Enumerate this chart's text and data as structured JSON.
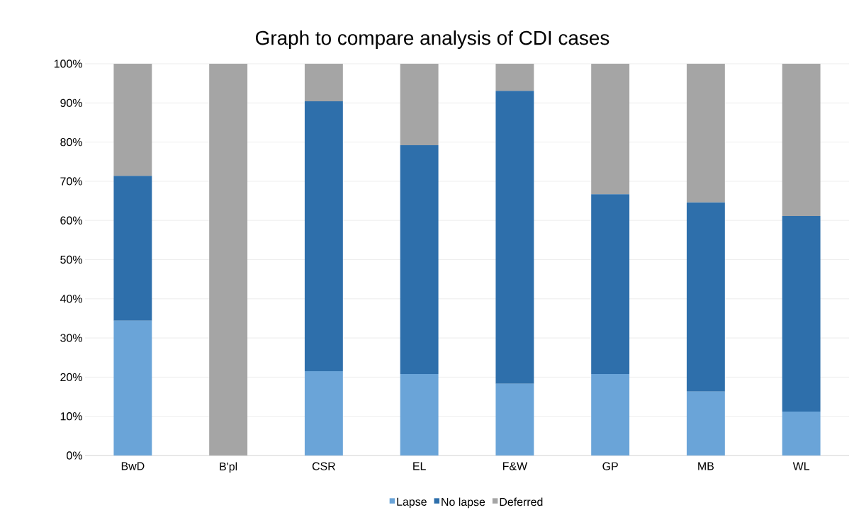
{
  "chart_data": {
    "type": "bar",
    "title": "Graph to compare analysis of CDI cases",
    "stacked": true,
    "categories": [
      "BwD",
      "B'pl",
      "CSR",
      "EL",
      "F&W",
      "GP",
      "MB",
      "WL"
    ],
    "series": [
      {
        "name": "Lapse",
        "color": "#6aa4d8",
        "values": [
          34.4,
          0,
          21.5,
          20.8,
          18.3,
          20.8,
          16.3,
          11.2
        ]
      },
      {
        "name": "No lapse",
        "color": "#2e6fab",
        "values": [
          37.0,
          0,
          68.9,
          58.4,
          74.8,
          45.9,
          48.3,
          49.9
        ]
      },
      {
        "name": "Deferred",
        "color": "#a5a5a5",
        "values": [
          28.6,
          100,
          9.6,
          20.8,
          6.9,
          33.3,
          35.4,
          38.9
        ]
      }
    ],
    "ylim": [
      0,
      100
    ],
    "yticks": [
      {
        "value": 0,
        "label": "0%"
      },
      {
        "value": 10,
        "label": "10%"
      },
      {
        "value": 20,
        "label": "20%"
      },
      {
        "value": 30,
        "label": "30%"
      },
      {
        "value": 40,
        "label": "40%"
      },
      {
        "value": 50,
        "label": "50%"
      },
      {
        "value": 60,
        "label": "60%"
      },
      {
        "value": 70,
        "label": "70%"
      },
      {
        "value": 80,
        "label": "80%"
      },
      {
        "value": 90,
        "label": "90%"
      },
      {
        "value": 100,
        "label": "100%"
      }
    ],
    "grid": "y",
    "legend": "bottom"
  }
}
